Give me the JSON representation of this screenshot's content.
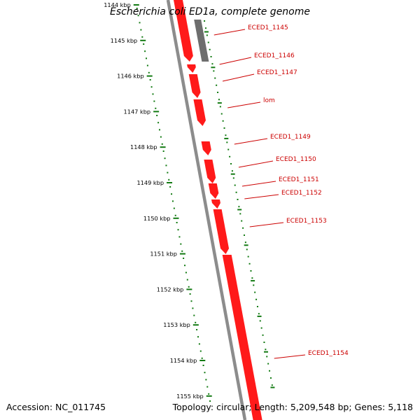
{
  "title": "Escherichia coli ED1a, complete genome",
  "accession": "Accession: NC_011745",
  "topology": "Topology: circular; Length: 5,209,548 bp; Genes: 5,118",
  "ruler_labels": [
    "1144 kbp",
    "1145 kbp",
    "1146 kbp",
    "1147 kbp",
    "1148 kbp",
    "1149 kbp",
    "1150 kbp",
    "1151 kbp",
    "1152 kbp",
    "1153 kbp",
    "1154 kbp",
    "1155 kbp"
  ],
  "gene_labels": [
    "ECED1_1145",
    "ECED1_1146",
    "ECED1_1147",
    "lom",
    "ECED1_1149",
    "ECED1_1150",
    "ECED1_1151",
    "ECED1_1152",
    "ECED1_1153",
    "ECED1_1154"
  ],
  "colors": {
    "forward_gene": "#ff1a1a",
    "gray_gene": "#6e6e6e",
    "backbone": "#8c8c8c",
    "ruler_ticks": "#127a12",
    "gene_label": "#cc0000",
    "text": "#000000"
  }
}
